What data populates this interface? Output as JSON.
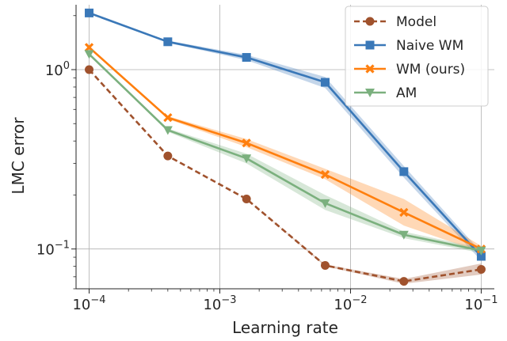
{
  "chart_data": {
    "type": "line",
    "xlabel": "Learning rate",
    "ylabel": "LMC error",
    "xscale": "log",
    "yscale": "log",
    "xlim": [
      7.94e-05,
      0.126
    ],
    "ylim": [
      0.06,
      2.3
    ],
    "grid": true,
    "legend_position": "top-right",
    "x": [
      0.0001,
      0.0004,
      0.0016,
      0.0064,
      0.0256,
      0.1
    ],
    "x_tick_labels": [
      {
        "value": 0.0001,
        "base": "10",
        "exp": "−4"
      },
      {
        "value": 0.001,
        "base": "10",
        "exp": "−3"
      },
      {
        "value": 0.01,
        "base": "10",
        "exp": "−2"
      },
      {
        "value": 0.1,
        "base": "10",
        "exp": "−1"
      }
    ],
    "y_tick_labels": [
      {
        "value": 1,
        "base": "10",
        "exp": "0"
      },
      {
        "value": 0.1,
        "base": "10",
        "exp": "−1"
      }
    ],
    "series": [
      {
        "name": "Model",
        "color": "#a0522d",
        "marker": "circle",
        "dashed": true,
        "values": [
          1.0,
          0.33,
          0.19,
          0.081,
          0.066,
          0.077
        ],
        "band_low": [
          1.0,
          0.33,
          0.19,
          0.08,
          0.064,
          0.072
        ],
        "band_high": [
          1.0,
          0.33,
          0.19,
          0.082,
          0.068,
          0.083
        ]
      },
      {
        "name": "Naive WM",
        "color": "#3a78b8",
        "marker": "square",
        "dashed": false,
        "values": [
          2.07,
          1.43,
          1.17,
          0.85,
          0.27,
          0.091
        ],
        "band_low": [
          2.07,
          1.41,
          1.13,
          0.79,
          0.25,
          0.086
        ],
        "band_high": [
          2.07,
          1.45,
          1.21,
          0.91,
          0.29,
          0.096
        ]
      },
      {
        "name": "WM (ours)",
        "color": "#ff7f0e",
        "marker": "x",
        "dashed": false,
        "values": [
          1.33,
          0.54,
          0.39,
          0.26,
          0.16,
          0.1
        ],
        "band_low": [
          1.33,
          0.53,
          0.37,
          0.245,
          0.135,
          0.096
        ],
        "band_high": [
          1.33,
          0.55,
          0.41,
          0.28,
          0.19,
          0.104
        ]
      },
      {
        "name": "AM",
        "color": "#7bb07e",
        "marker": "triangle-down",
        "dashed": false,
        "values": [
          1.22,
          0.46,
          0.32,
          0.18,
          0.12,
          0.098
        ],
        "band_low": [
          1.22,
          0.45,
          0.3,
          0.165,
          0.115,
          0.095
        ],
        "band_high": [
          1.22,
          0.47,
          0.34,
          0.2,
          0.125,
          0.101
        ]
      }
    ]
  }
}
